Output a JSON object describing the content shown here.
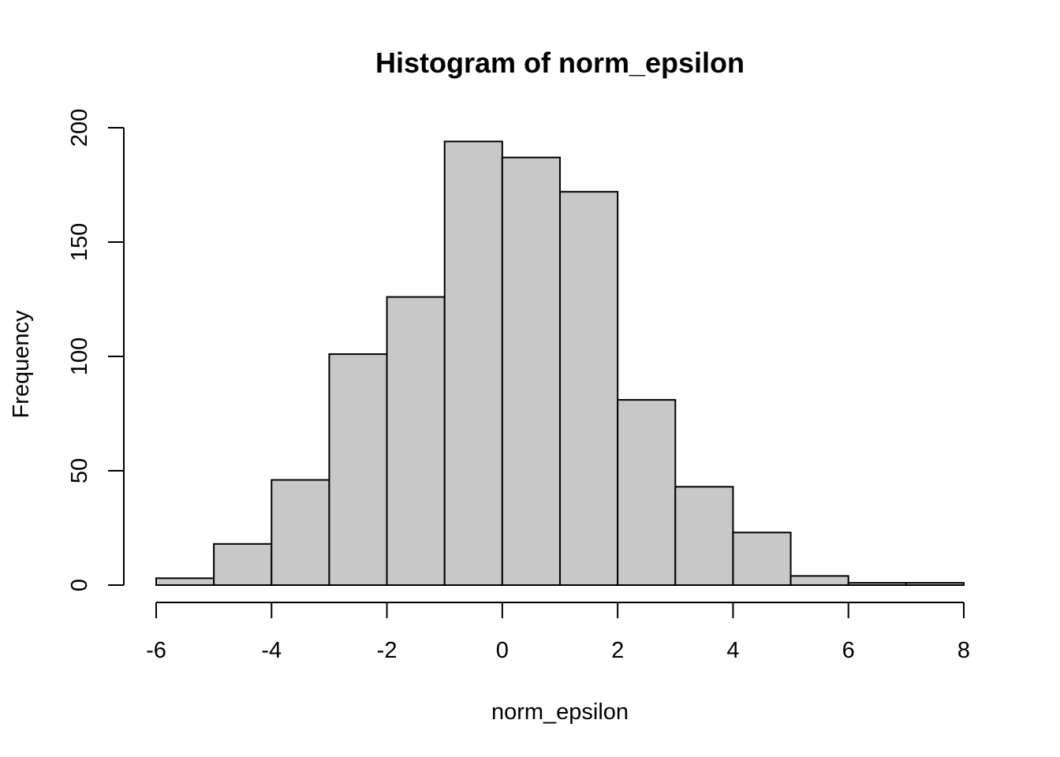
{
  "chart_data": {
    "type": "bar",
    "title": "Histogram of norm_epsilon",
    "xlabel": "norm_epsilon",
    "ylabel": "Frequency",
    "bin_edges": [
      -6,
      -5,
      -4,
      -3,
      -2,
      -1,
      0,
      1,
      2,
      3,
      4,
      5,
      6,
      7,
      8
    ],
    "values": [
      3,
      18,
      46,
      101,
      126,
      194,
      187,
      172,
      81,
      43,
      23,
      4,
      1,
      1
    ],
    "xlim": [
      -6,
      8
    ],
    "ylim": [
      0,
      200
    ],
    "x_ticks": [
      "-6",
      "-4",
      "-2",
      "0",
      "2",
      "4",
      "6",
      "8"
    ],
    "y_ticks": [
      "0",
      "50",
      "100",
      "150",
      "200"
    ],
    "grid": false,
    "colors": {
      "bar_fill": "#c8c8c8",
      "bar_stroke": "#000000"
    }
  }
}
